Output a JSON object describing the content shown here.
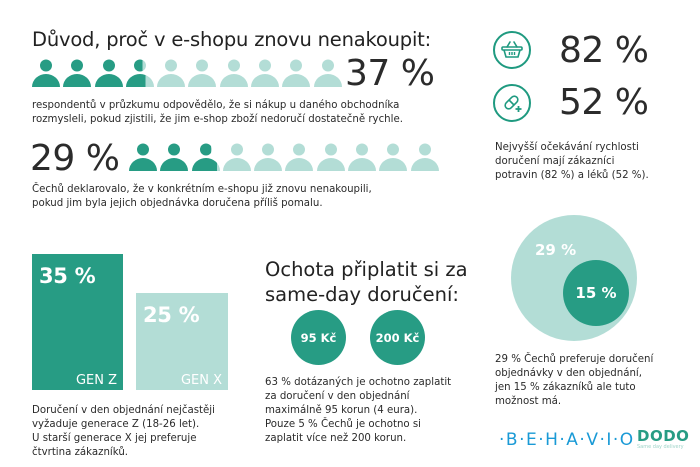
{
  "colors": {
    "dark_green": "#279c84",
    "light_green": "#b3ddd6",
    "text": "#2b2b2b",
    "behavio_blue": "#1a9ad6"
  },
  "section1": {
    "title": "Důvod, proč v e-shopu znovu nenakoupit:",
    "percent": "37 %",
    "icons_total": 10,
    "icons_filled": 3.7,
    "text_line1": "respondentů v průzkumu odpovědělo, že si nákup u daného obchodníka",
    "text_line2": "rozmysleli, pokud zjistili, že jim e-shop zboží nedoručí dostatečně rychle."
  },
  "section2": {
    "percent": "29 %",
    "icons_total": 10,
    "icons_filled": 2.9,
    "text_line1": "Čechů  deklarovalo, že v konkrétním e-shopu již znovu nenakoupili,",
    "text_line2": "pokud jim byla jejich objednávka doručena příliš pomalu."
  },
  "expectations": {
    "groceries": {
      "icon": "basket-icon",
      "percent": "82 %"
    },
    "medicine": {
      "icon": "pill-icon",
      "percent": "52 %"
    },
    "text_line1": "Nejvyšší očekávání rychlosti",
    "text_line2": "doručení mají zákazníci",
    "text_line3": "potravin (82 %) a léků (52 %)."
  },
  "generations": {
    "gen_z": {
      "percent": "35 %",
      "label": "GEN Z"
    },
    "gen_x": {
      "percent": "25 %",
      "label": "GEN X"
    },
    "text_line1": "Doručení v den objednání nejčastěji",
    "text_line2": "vyžaduje generace Z (18-26 let).",
    "text_line3": "U starší generace X jej preferuje",
    "text_line4": "čtvrtina zákazníků."
  },
  "willingness": {
    "title_line1": "Ochota připlatit si za",
    "title_line2": "same-day doručení:",
    "coin1": "95 Kč",
    "coin2": "200 Kč",
    "text_line1": "63 % dotázaných je ochotno zaplatit",
    "text_line2": "za doručení v den objednání",
    "text_line3": "maximálně 95 korun (4 eura).",
    "text_line4": "Pouze 5 % Čechů je ochotno si",
    "text_line5": "zaplatit více než 200 korun."
  },
  "preference": {
    "outer": "29 %",
    "inner": "15 %",
    "text_line1": "29 % Čechů preferuje doručení",
    "text_line2": "objednávky v den objednání,",
    "text_line3": "jen 15 % zákazníků ale tuto",
    "text_line4": "možnost má."
  },
  "logos": {
    "behavio": "·B·E·H·A·V·I·O",
    "dodo": "DODO",
    "dodo_tagline": "Same day delivery"
  }
}
